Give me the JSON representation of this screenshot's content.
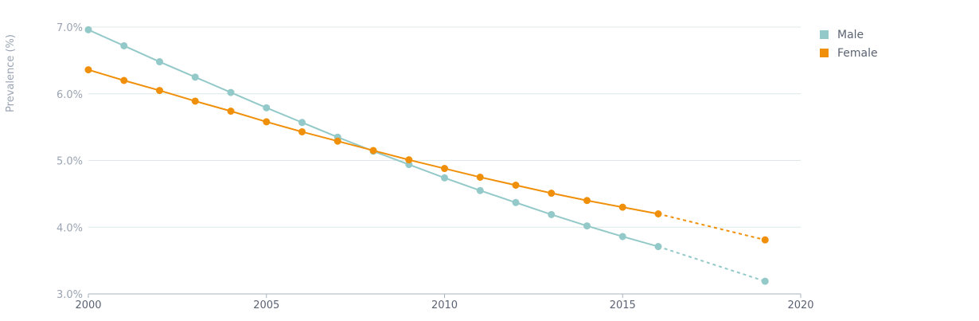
{
  "chart_data": {
    "type": "line",
    "ylabel": "Prevalence (%)",
    "xlabel": "",
    "xlim": [
      2000,
      2020
    ],
    "ylim": [
      3.0,
      7.0
    ],
    "x_ticks": [
      2000,
      2005,
      2010,
      2015,
      2020
    ],
    "x_tick_labels": [
      "2000",
      "2005",
      "2010",
      "2015",
      "2020"
    ],
    "y_ticks": [
      3,
      4,
      5,
      6,
      7
    ],
    "y_tick_labels": [
      "3.0%",
      "4.0%",
      "5.0%",
      "6.0%",
      "7.0%"
    ],
    "grid": "horizontal",
    "legend_position": "top-right",
    "series": [
      {
        "name": "Male",
        "color": "#93c9c8",
        "points": [
          [
            2000,
            6.96
          ],
          [
            2001,
            6.72
          ],
          [
            2002,
            6.48
          ],
          [
            2003,
            6.25
          ],
          [
            2004,
            6.02
          ],
          [
            2005,
            5.79
          ],
          [
            2006,
            5.57
          ],
          [
            2007,
            5.35
          ],
          [
            2008,
            5.14
          ],
          [
            2009,
            4.94
          ],
          [
            2010,
            4.74
          ],
          [
            2011,
            4.55
          ],
          [
            2012,
            4.37
          ],
          [
            2013,
            4.19
          ],
          [
            2014,
            4.02
          ],
          [
            2015,
            3.86
          ],
          [
            2016,
            3.71
          ]
        ],
        "projection": [
          [
            2016,
            3.71
          ],
          [
            2019,
            3.19
          ]
        ]
      },
      {
        "name": "Female",
        "color": "#f0900a",
        "points": [
          [
            2000,
            6.36
          ],
          [
            2001,
            6.2
          ],
          [
            2002,
            6.05
          ],
          [
            2003,
            5.89
          ],
          [
            2004,
            5.74
          ],
          [
            2005,
            5.58
          ],
          [
            2006,
            5.43
          ],
          [
            2007,
            5.29
          ],
          [
            2008,
            5.15
          ],
          [
            2009,
            5.01
          ],
          [
            2010,
            4.88
          ],
          [
            2011,
            4.75
          ],
          [
            2012,
            4.63
          ],
          [
            2013,
            4.51
          ],
          [
            2014,
            4.4
          ],
          [
            2015,
            4.3
          ],
          [
            2016,
            4.2
          ]
        ],
        "projection": [
          [
            2016,
            4.2
          ],
          [
            2019,
            3.81
          ]
        ]
      }
    ]
  }
}
